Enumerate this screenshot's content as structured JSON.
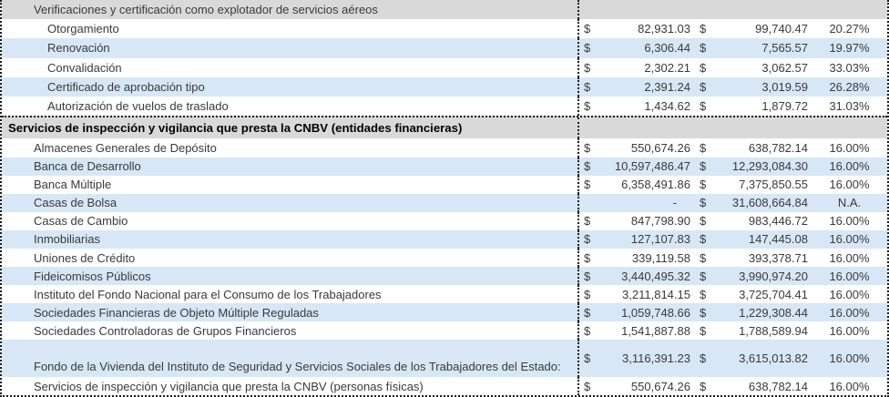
{
  "currency_symbol": "$",
  "colors": {
    "band_blue": "#D7E7F5",
    "header_gray": "#D9D9D9",
    "border": "#1a1a1a",
    "text": "#3a3a3a",
    "text_strong": "#000000"
  },
  "table": {
    "sections": [
      {
        "header": {
          "label": "Verificaciones y certificación como explotador de servicios aéreos",
          "indent": 1,
          "bold": false
        },
        "rows": [
          {
            "label": "Otorgamiento",
            "indent": 2,
            "a1": "82,931.03",
            "a2": "99,740.47",
            "pct": "20.27%"
          },
          {
            "label": "Renovación",
            "indent": 2,
            "a1": "6,306.44",
            "a2": "7,565.57",
            "pct": "19.97%"
          },
          {
            "label": "Convalidación",
            "indent": 2,
            "a1": "2,302.21",
            "a2": "3,062.57",
            "pct": "33.03%"
          },
          {
            "label": "Certificado de aprobación tipo",
            "indent": 2,
            "a1": "2,391.24",
            "a2": "3,019.59",
            "pct": "26.28%"
          },
          {
            "label": "Autorización de vuelos de traslado",
            "indent": 2,
            "a1": "1,434.62",
            "a2": "1,879.72",
            "pct": "31.03%"
          }
        ]
      },
      {
        "header": {
          "label": "Servicios de inspección y vigilancia que presta la CNBV (entidades financieras)",
          "indent": 0,
          "bold": true
        },
        "rows": [
          {
            "label": "Almacenes Generales de Depósito",
            "indent": 1,
            "a1": "550,674.26",
            "a2": "638,782.14",
            "pct": "16.00%"
          },
          {
            "label": "Banca de Desarrollo",
            "indent": 1,
            "a1": "10,597,486.47",
            "a2": "12,293,084.30",
            "pct": "16.00%"
          },
          {
            "label": "Banca Múltiple",
            "indent": 1,
            "a1": "6,358,491.86",
            "a2": "7,375,850.55",
            "pct": "16.00%"
          },
          {
            "label": "Casas de Bolsa",
            "indent": 1,
            "a1": "-",
            "a2": "31,608,664.84",
            "pct": "N.A."
          },
          {
            "label": "Casas de Cambio",
            "indent": 1,
            "a1": "847,798.90",
            "a2": "983,446.72",
            "pct": "16.00%"
          },
          {
            "label": "Inmobiliarias",
            "indent": 1,
            "a1": "127,107.83",
            "a2": "147,445.08",
            "pct": "16.00%"
          },
          {
            "label": "Uniones de Crédito",
            "indent": 1,
            "a1": "339,119.58",
            "a2": "393,378.71",
            "pct": "16.00%"
          },
          {
            "label": "Fideicomisos Públicos",
            "indent": 1,
            "a1": "3,440,495.32",
            "a2": "3,990,974.20",
            "pct": "16.00%"
          },
          {
            "label": "Instituto del Fondo Nacional para el Consumo de los Trabajadores",
            "indent": 1,
            "a1": "3,211,814.15",
            "a2": "3,725,704.41",
            "pct": "16.00%"
          },
          {
            "label": "Sociedades Financieras de Objeto Múltiple Reguladas",
            "indent": 1,
            "a1": "1,059,748.66",
            "a2": "1,229,308.44",
            "pct": "16.00%"
          },
          {
            "label": "Sociedades Controladoras de Grupos Financieros",
            "indent": 1,
            "a1": "1,541,887.88",
            "a2": "1,788,589.94",
            "pct": "16.00%"
          },
          {
            "label": "Fondo de la Vivienda del Instituto de Seguridad y Servicios Sociales de los Trabajadores del Estado:",
            "indent": 1,
            "tall": true,
            "a1": "3,116,391.23",
            "a2": "3,615,013.82",
            "pct": "16.00%"
          },
          {
            "label": "Servicios de inspección y vigilancia que presta la CNBV (personas físicas)",
            "indent": 1,
            "a1": "550,674.26",
            "a2": "638,782.14",
            "pct": "16.00%"
          }
        ]
      }
    ]
  }
}
